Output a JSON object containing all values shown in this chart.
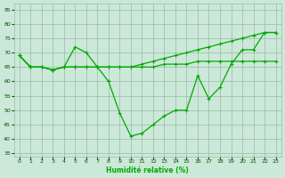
{
  "curve_top_x": [
    0,
    1,
    2,
    3,
    4,
    5,
    6,
    7,
    8,
    9,
    10,
    11,
    12,
    13,
    14,
    15,
    16,
    17,
    18,
    19,
    20,
    21,
    22,
    23
  ],
  "curve_top_y": [
    69,
    65,
    65,
    64,
    65,
    65,
    65,
    65,
    65,
    65,
    65,
    65,
    65,
    66,
    66,
    66,
    67,
    67,
    67,
    67,
    67,
    67,
    67,
    67
  ],
  "curve_rising_x": [
    0,
    1,
    2,
    3,
    4,
    5,
    6,
    7,
    8,
    9,
    10,
    11,
    12,
    13,
    14,
    15,
    16,
    17,
    18,
    19,
    20,
    21,
    22,
    23
  ],
  "curve_rising_y": [
    69,
    65,
    65,
    64,
    65,
    65,
    65,
    65,
    65,
    65,
    65,
    66,
    67,
    68,
    69,
    70,
    71,
    72,
    73,
    74,
    75,
    76,
    77,
    77
  ],
  "curve_dip_x": [
    0,
    1,
    2,
    3,
    4,
    5,
    6,
    7,
    8,
    9,
    10,
    11,
    12,
    13,
    14,
    15,
    16,
    17,
    18,
    19,
    20,
    21,
    22,
    23
  ],
  "curve_dip_y": [
    69,
    65,
    65,
    64,
    65,
    72,
    70,
    65,
    60,
    49,
    41,
    42,
    45,
    48,
    50,
    50,
    62,
    54,
    58,
    66,
    71,
    71,
    77,
    77
  ],
  "bg_color": "#cce8d8",
  "grid_color": "#99bbaa",
  "line_color": "#00aa00",
  "tick_color": "#005500",
  "xlabel": "Humidité relative (%)",
  "xlim": [
    -0.5,
    23.5
  ],
  "ylim": [
    34,
    87
  ],
  "yticks": [
    35,
    40,
    45,
    50,
    55,
    60,
    65,
    70,
    75,
    80,
    85
  ],
  "xticks": [
    0,
    1,
    2,
    3,
    4,
    5,
    6,
    7,
    8,
    9,
    10,
    11,
    12,
    13,
    14,
    15,
    16,
    17,
    18,
    19,
    20,
    21,
    22,
    23
  ]
}
